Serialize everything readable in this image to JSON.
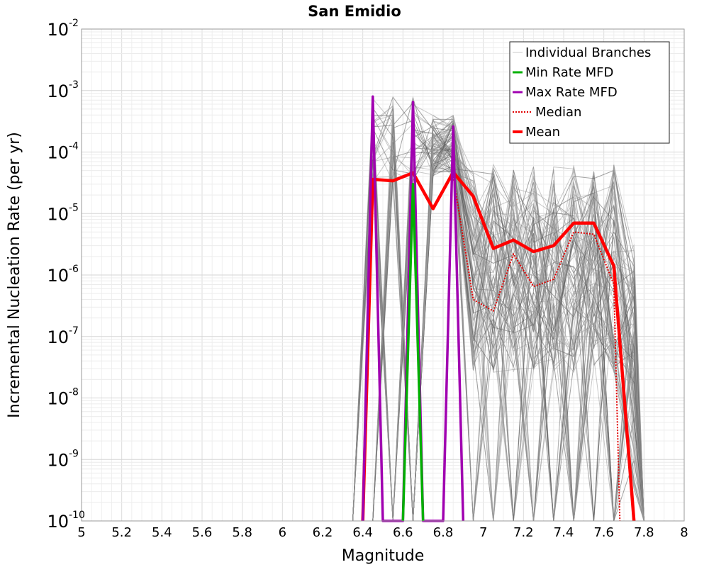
{
  "chart_data": {
    "type": "line",
    "title": "San Emidio",
    "xlabel": "Magnitude",
    "ylabel": "Incremental Nucleation Rate (per yr)",
    "xlim": [
      5,
      8
    ],
    "ylim": [
      1e-10,
      0.01
    ],
    "yscale": "log",
    "grid": true,
    "legend_position": "top-right",
    "x_ticks": [
      "5",
      "5.2",
      "5.4",
      "5.6",
      "5.8",
      "6",
      "6.2",
      "6.4",
      "6.6",
      "6.8",
      "7",
      "7.2",
      "7.4",
      "7.6",
      "7.8",
      "8"
    ],
    "y_ticks": [
      {
        "base": "10",
        "exp": "-10",
        "value": 1e-10
      },
      {
        "base": "10",
        "exp": "-9",
        "value": 1e-09
      },
      {
        "base": "10",
        "exp": "-8",
        "value": 1e-08
      },
      {
        "base": "10",
        "exp": "-7",
        "value": 1e-07
      },
      {
        "base": "10",
        "exp": "-6",
        "value": 1e-06
      },
      {
        "base": "10",
        "exp": "-5",
        "value": 1e-05
      },
      {
        "base": "10",
        "exp": "-4",
        "value": 0.0001
      },
      {
        "base": "10",
        "exp": "-3",
        "value": 0.001
      },
      {
        "base": "10",
        "exp": "-2",
        "value": 0.01
      }
    ],
    "legend": [
      {
        "label": "Individual Branches",
        "color": "#c8c8c8",
        "style": "solid-thin"
      },
      {
        "label": "Min Rate MFD",
        "color": "#00b000",
        "style": "solid"
      },
      {
        "label": "Max Rate MFD",
        "color": "#a000b0",
        "style": "solid"
      },
      {
        "label": "Median",
        "color": "#e00000",
        "style": "dotted"
      },
      {
        "label": "Mean",
        "color": "#ff0000",
        "style": "solid-thick"
      }
    ],
    "series": [
      {
        "name": "Mean",
        "color": "#ff0000",
        "x": [
          6.4,
          6.45,
          6.55,
          6.65,
          6.75,
          6.85,
          6.95,
          7.05,
          7.15,
          7.25,
          7.35,
          7.45,
          7.55,
          7.65,
          7.75
        ],
        "values": [
          1e-10,
          3.6e-05,
          3.4e-05,
          4.6e-05,
          1.2e-05,
          4.7e-05,
          1.9e-05,
          2.7e-06,
          3.7e-06,
          2.4e-06,
          3e-06,
          7e-06,
          7e-06,
          1.4e-06,
          1e-10
        ]
      },
      {
        "name": "Median",
        "color": "#e00000",
        "x": [
          6.85,
          6.95,
          7.05,
          7.15,
          7.25,
          7.35,
          7.45,
          7.55,
          7.65,
          7.68
        ],
        "values": [
          4e-05,
          4e-07,
          2.6e-07,
          2.2e-06,
          6.5e-07,
          8.5e-07,
          5e-06,
          4.6e-06,
          7e-07,
          1e-10
        ]
      },
      {
        "name": "Max Rate MFD",
        "color": "#a000b0",
        "x": [
          6.4,
          6.45,
          6.5,
          6.55,
          6.6,
          6.65,
          6.7,
          6.75,
          6.8,
          6.85,
          6.9
        ],
        "values": [
          1e-10,
          0.0008,
          1e-10,
          1e-10,
          1e-10,
          0.00065,
          1e-10,
          1e-10,
          1e-10,
          0.00026,
          1e-10
        ]
      },
      {
        "name": "Min Rate MFD",
        "color": "#00b000",
        "x": [
          6.6,
          6.65,
          6.7
        ],
        "values": [
          1e-10,
          3e-05,
          1e-10
        ]
      }
    ]
  }
}
